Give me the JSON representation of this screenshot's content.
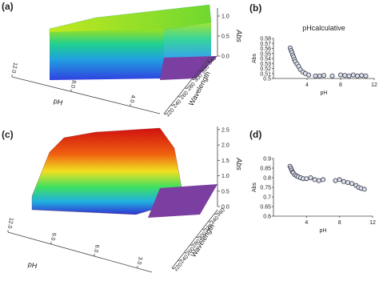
{
  "chart_data": [
    {
      "type": "surface3d",
      "panel_label": "(a)",
      "x_label": "pH",
      "y_label": "Wavelength",
      "z_label": "Abs",
      "xlim": [
        12,
        2
      ],
      "xticks": [
        {
          "value": 12,
          "label": "12.0"
        },
        {
          "value": 8,
          "label": "8.0"
        },
        {
          "value": 4,
          "label": "4.0"
        }
      ],
      "ylim": [
        220,
        350
      ],
      "yticks": [
        220,
        240,
        260,
        280,
        300,
        320,
        340
      ],
      "zlim": [
        0,
        1.2
      ],
      "zticks": [
        {
          "value": 0,
          "label": "0.0"
        },
        0.5,
        {
          "value": 1,
          "label": "1.0"
        }
      ]
    },
    {
      "type": "scatter",
      "panel_label": "(b)",
      "title": "pHcalculative",
      "x_label": "pH",
      "y_label": "Abs",
      "x": [
        2.0,
        2.1,
        2.2,
        2.3,
        2.4,
        2.5,
        2.6,
        2.8,
        3.0,
        3.2,
        3.5,
        3.8,
        4.2,
        5.0,
        5.5,
        6.0,
        7.0,
        8.0,
        8.5,
        9.0,
        9.5,
        10.0,
        10.5,
        11.0
      ],
      "values": [
        0.561,
        0.556,
        0.552,
        0.547,
        0.543,
        0.538,
        0.534,
        0.529,
        0.524,
        0.518,
        0.513,
        0.51,
        0.507,
        0.505,
        0.505,
        0.506,
        0.505,
        0.507,
        0.506,
        0.505,
        0.507,
        0.505,
        0.506,
        0.505
      ],
      "color": "#dce3ee",
      "xlim": [
        0,
        12
      ],
      "xticks": [
        4,
        8,
        12
      ],
      "ylim": [
        0.5,
        0.58
      ],
      "yticks": [
        0.5,
        0.51,
        0.52,
        0.53,
        0.54,
        0.55,
        0.56,
        0.57,
        0.58
      ]
    },
    {
      "type": "surface3d",
      "panel_label": "(c)",
      "x_label": "pH",
      "y_label": "Wavelength",
      "z_label": "Abs",
      "xlim": [
        12,
        2
      ],
      "xticks": [
        {
          "value": 12,
          "label": "12.0"
        },
        {
          "value": 9,
          "label": "9.0"
        },
        {
          "value": 6,
          "label": "6.0"
        },
        {
          "value": 3,
          "label": "3.0"
        }
      ],
      "ylim": [
        220,
        370
      ],
      "yticks": [
        220,
        240,
        260,
        280,
        300,
        320,
        340,
        360
      ],
      "zlim": [
        0,
        2.6
      ],
      "zticks": [
        {
          "value": 0,
          "label": "0.0"
        },
        0.5,
        {
          "value": 1,
          "label": "1.0"
        },
        1.5,
        {
          "value": 2,
          "label": "2.0"
        },
        2.5
      ]
    },
    {
      "type": "scatter",
      "panel_label": "(d)",
      "x_label": "pH",
      "y_label": "Abs",
      "x": [
        2.0,
        2.1,
        2.2,
        2.3,
        2.4,
        2.6,
        2.8,
        3.0,
        3.3,
        3.6,
        4.0,
        4.5,
        5.0,
        5.5,
        6.0,
        7.5,
        8.0,
        8.5,
        9.0,
        9.5,
        10.0,
        10.3,
        10.6,
        11.0
      ],
      "values": [
        0.86,
        0.85,
        0.84,
        0.83,
        0.825,
        0.815,
        0.81,
        0.805,
        0.8,
        0.795,
        0.795,
        0.8,
        0.79,
        0.785,
        0.79,
        0.785,
        0.79,
        0.78,
        0.775,
        0.77,
        0.76,
        0.75,
        0.745,
        0.74
      ],
      "color": "#dce3ee",
      "xlim": [
        0,
        12
      ],
      "xticks": [
        4,
        8,
        12
      ],
      "ylim": [
        0.6,
        0.9
      ],
      "yticks": [
        0.6,
        0.65,
        0.7,
        0.75,
        0.8,
        0.85,
        0.9
      ]
    }
  ]
}
